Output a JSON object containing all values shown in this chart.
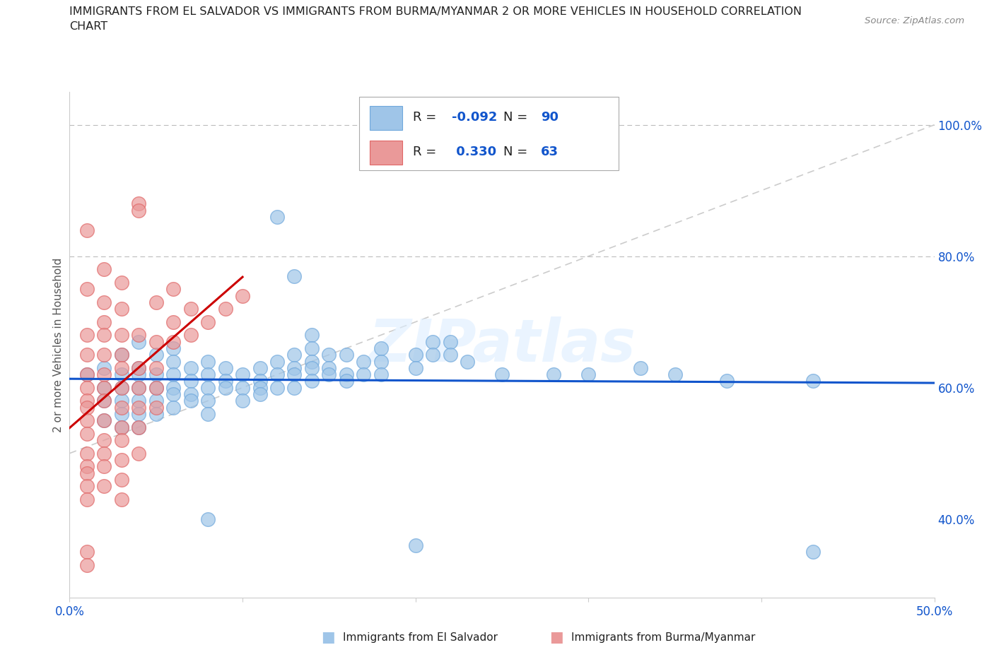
{
  "title_line1": "IMMIGRANTS FROM EL SALVADOR VS IMMIGRANTS FROM BURMA/MYANMAR 2 OR MORE VEHICLES IN HOUSEHOLD CORRELATION",
  "title_line2": "CHART",
  "source": "Source: ZipAtlas.com",
  "ylabel": "2 or more Vehicles in Household",
  "xlim": [
    0.0,
    0.5
  ],
  "ylim": [
    0.28,
    1.05
  ],
  "x_tick_positions": [
    0.0,
    0.1,
    0.2,
    0.3,
    0.4,
    0.5
  ],
  "x_tick_labels": [
    "0.0%",
    "",
    "",
    "",
    "",
    "50.0%"
  ],
  "y_tick_labels_right": [
    "40.0%",
    "60.0%",
    "80.0%",
    "100.0%"
  ],
  "y_ticks_right": [
    0.4,
    0.6,
    0.8,
    1.0
  ],
  "hlines": [
    0.8,
    1.0
  ],
  "R_blue": -0.092,
  "N_blue": 90,
  "R_pink": 0.33,
  "N_pink": 63,
  "legend_label_blue": "Immigrants from El Salvador",
  "legend_label_pink": "Immigrants from Burma/Myanmar",
  "blue_color": "#9fc5e8",
  "pink_color": "#ea9999",
  "blue_edge_color": "#6fa8dc",
  "pink_edge_color": "#e06666",
  "blue_line_color": "#1155cc",
  "pink_line_color": "#cc0000",
  "diagonal_color": "#cccccc",
  "watermark": "ZIPatlas",
  "blue_scatter": [
    [
      0.01,
      0.62
    ],
    [
      0.02,
      0.63
    ],
    [
      0.02,
      0.6
    ],
    [
      0.02,
      0.58
    ],
    [
      0.02,
      0.55
    ],
    [
      0.03,
      0.65
    ],
    [
      0.03,
      0.62
    ],
    [
      0.03,
      0.6
    ],
    [
      0.03,
      0.58
    ],
    [
      0.03,
      0.56
    ],
    [
      0.03,
      0.54
    ],
    [
      0.04,
      0.67
    ],
    [
      0.04,
      0.63
    ],
    [
      0.04,
      0.62
    ],
    [
      0.04,
      0.6
    ],
    [
      0.04,
      0.58
    ],
    [
      0.04,
      0.56
    ],
    [
      0.04,
      0.54
    ],
    [
      0.05,
      0.65
    ],
    [
      0.05,
      0.62
    ],
    [
      0.05,
      0.6
    ],
    [
      0.05,
      0.58
    ],
    [
      0.05,
      0.56
    ],
    [
      0.06,
      0.66
    ],
    [
      0.06,
      0.64
    ],
    [
      0.06,
      0.62
    ],
    [
      0.06,
      0.6
    ],
    [
      0.06,
      0.59
    ],
    [
      0.06,
      0.57
    ],
    [
      0.07,
      0.63
    ],
    [
      0.07,
      0.61
    ],
    [
      0.07,
      0.59
    ],
    [
      0.07,
      0.58
    ],
    [
      0.08,
      0.64
    ],
    [
      0.08,
      0.62
    ],
    [
      0.08,
      0.6
    ],
    [
      0.08,
      0.58
    ],
    [
      0.08,
      0.56
    ],
    [
      0.09,
      0.63
    ],
    [
      0.09,
      0.61
    ],
    [
      0.09,
      0.6
    ],
    [
      0.1,
      0.62
    ],
    [
      0.1,
      0.6
    ],
    [
      0.1,
      0.58
    ],
    [
      0.11,
      0.63
    ],
    [
      0.11,
      0.61
    ],
    [
      0.11,
      0.6
    ],
    [
      0.11,
      0.59
    ],
    [
      0.12,
      0.86
    ],
    [
      0.12,
      0.64
    ],
    [
      0.12,
      0.62
    ],
    [
      0.12,
      0.6
    ],
    [
      0.13,
      0.77
    ],
    [
      0.13,
      0.65
    ],
    [
      0.13,
      0.63
    ],
    [
      0.13,
      0.62
    ],
    [
      0.13,
      0.6
    ],
    [
      0.14,
      0.68
    ],
    [
      0.14,
      0.66
    ],
    [
      0.14,
      0.64
    ],
    [
      0.14,
      0.63
    ],
    [
      0.14,
      0.61
    ],
    [
      0.15,
      0.65
    ],
    [
      0.15,
      0.63
    ],
    [
      0.15,
      0.62
    ],
    [
      0.16,
      0.65
    ],
    [
      0.16,
      0.62
    ],
    [
      0.16,
      0.61
    ],
    [
      0.17,
      0.64
    ],
    [
      0.17,
      0.62
    ],
    [
      0.18,
      0.66
    ],
    [
      0.18,
      0.64
    ],
    [
      0.18,
      0.62
    ],
    [
      0.2,
      0.65
    ],
    [
      0.2,
      0.63
    ],
    [
      0.21,
      0.67
    ],
    [
      0.21,
      0.65
    ],
    [
      0.22,
      0.67
    ],
    [
      0.22,
      0.65
    ],
    [
      0.23,
      0.64
    ],
    [
      0.25,
      0.62
    ],
    [
      0.28,
      0.62
    ],
    [
      0.3,
      0.62
    ],
    [
      0.33,
      0.63
    ],
    [
      0.35,
      0.62
    ],
    [
      0.38,
      0.61
    ],
    [
      0.43,
      0.61
    ],
    [
      0.43,
      0.35
    ],
    [
      0.08,
      0.4
    ],
    [
      0.2,
      0.36
    ]
  ],
  "pink_scatter": [
    [
      0.01,
      0.84
    ],
    [
      0.01,
      0.75
    ],
    [
      0.01,
      0.68
    ],
    [
      0.01,
      0.65
    ],
    [
      0.01,
      0.62
    ],
    [
      0.01,
      0.6
    ],
    [
      0.01,
      0.58
    ],
    [
      0.01,
      0.57
    ],
    [
      0.01,
      0.55
    ],
    [
      0.01,
      0.53
    ],
    [
      0.01,
      0.5
    ],
    [
      0.01,
      0.48
    ],
    [
      0.01,
      0.47
    ],
    [
      0.01,
      0.45
    ],
    [
      0.01,
      0.43
    ],
    [
      0.01,
      0.35
    ],
    [
      0.01,
      0.33
    ],
    [
      0.02,
      0.78
    ],
    [
      0.02,
      0.73
    ],
    [
      0.02,
      0.7
    ],
    [
      0.02,
      0.68
    ],
    [
      0.02,
      0.65
    ],
    [
      0.02,
      0.62
    ],
    [
      0.02,
      0.6
    ],
    [
      0.02,
      0.58
    ],
    [
      0.02,
      0.55
    ],
    [
      0.02,
      0.52
    ],
    [
      0.02,
      0.5
    ],
    [
      0.02,
      0.48
    ],
    [
      0.02,
      0.45
    ],
    [
      0.03,
      0.76
    ],
    [
      0.03,
      0.72
    ],
    [
      0.03,
      0.68
    ],
    [
      0.03,
      0.65
    ],
    [
      0.03,
      0.63
    ],
    [
      0.03,
      0.6
    ],
    [
      0.03,
      0.57
    ],
    [
      0.03,
      0.54
    ],
    [
      0.03,
      0.52
    ],
    [
      0.03,
      0.49
    ],
    [
      0.03,
      0.46
    ],
    [
      0.03,
      0.43
    ],
    [
      0.04,
      0.88
    ],
    [
      0.04,
      0.87
    ],
    [
      0.04,
      0.68
    ],
    [
      0.04,
      0.63
    ],
    [
      0.04,
      0.6
    ],
    [
      0.04,
      0.57
    ],
    [
      0.04,
      0.54
    ],
    [
      0.04,
      0.5
    ],
    [
      0.05,
      0.73
    ],
    [
      0.05,
      0.67
    ],
    [
      0.05,
      0.63
    ],
    [
      0.05,
      0.6
    ],
    [
      0.05,
      0.57
    ],
    [
      0.06,
      0.75
    ],
    [
      0.06,
      0.7
    ],
    [
      0.06,
      0.67
    ],
    [
      0.07,
      0.72
    ],
    [
      0.07,
      0.68
    ],
    [
      0.08,
      0.7
    ],
    [
      0.09,
      0.72
    ],
    [
      0.1,
      0.74
    ]
  ]
}
